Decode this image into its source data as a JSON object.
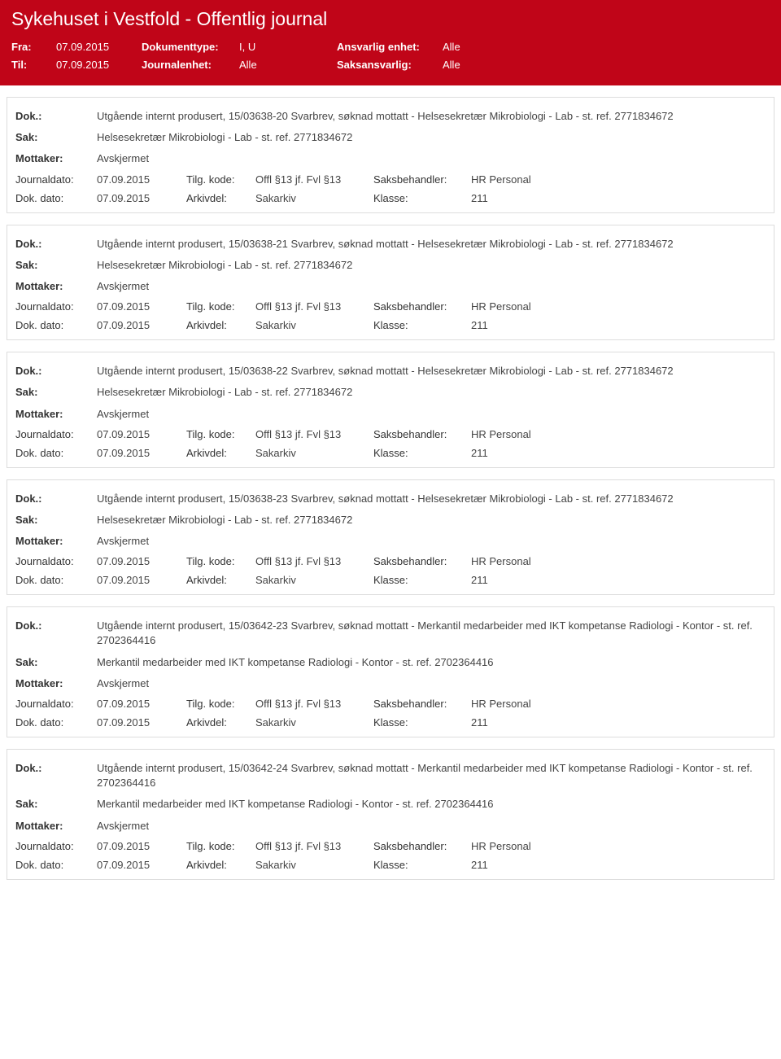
{
  "header": {
    "title": "Sykehuset i Vestfold - Offentlig journal",
    "fra_label": "Fra:",
    "fra_value": "07.09.2015",
    "til_label": "Til:",
    "til_value": "07.09.2015",
    "doktype_label": "Dokumenttype:",
    "doktype_value": "I, U",
    "journalenhet_label": "Journalenhet:",
    "journalenhet_value": "Alle",
    "ansvarlig_label": "Ansvarlig enhet:",
    "ansvarlig_value": "Alle",
    "saksansvarlig_label": "Saksansvarlig:",
    "saksansvarlig_value": "Alle"
  },
  "labels": {
    "dok": "Dok.:",
    "sak": "Sak:",
    "mottaker": "Mottaker:",
    "journaldato": "Journaldato:",
    "tilgkode": "Tilg. kode:",
    "saksbehandler": "Saksbehandler:",
    "dokdato": "Dok. dato:",
    "arkivdel": "Arkivdel:",
    "klasse": "Klasse:"
  },
  "entries": [
    {
      "dok": "Utgående internt produsert, 15/03638-20 Svarbrev, søknad mottatt - Helsesekretær Mikrobiologi - Lab - st. ref. 2771834672",
      "sak": "Helsesekretær Mikrobiologi - Lab - st. ref. 2771834672",
      "mottaker": "Avskjermet",
      "journaldato": "07.09.2015",
      "tilgkode": "Offl §13 jf. Fvl §13",
      "saksbehandler": "HR Personal",
      "dokdato": "07.09.2015",
      "arkivdel": "Sakarkiv",
      "klasse": "211"
    },
    {
      "dok": "Utgående internt produsert, 15/03638-21 Svarbrev, søknad mottatt - Helsesekretær Mikrobiologi - Lab - st. ref. 2771834672",
      "sak": "Helsesekretær Mikrobiologi - Lab - st. ref. 2771834672",
      "mottaker": "Avskjermet",
      "journaldato": "07.09.2015",
      "tilgkode": "Offl §13 jf. Fvl §13",
      "saksbehandler": "HR Personal",
      "dokdato": "07.09.2015",
      "arkivdel": "Sakarkiv",
      "klasse": "211"
    },
    {
      "dok": "Utgående internt produsert, 15/03638-22 Svarbrev, søknad mottatt - Helsesekretær Mikrobiologi - Lab - st. ref. 2771834672",
      "sak": "Helsesekretær Mikrobiologi - Lab - st. ref. 2771834672",
      "mottaker": "Avskjermet",
      "journaldato": "07.09.2015",
      "tilgkode": "Offl §13 jf. Fvl §13",
      "saksbehandler": "HR Personal",
      "dokdato": "07.09.2015",
      "arkivdel": "Sakarkiv",
      "klasse": "211"
    },
    {
      "dok": "Utgående internt produsert, 15/03638-23 Svarbrev, søknad mottatt - Helsesekretær Mikrobiologi - Lab - st. ref. 2771834672",
      "sak": "Helsesekretær Mikrobiologi - Lab - st. ref. 2771834672",
      "mottaker": "Avskjermet",
      "journaldato": "07.09.2015",
      "tilgkode": "Offl §13 jf. Fvl §13",
      "saksbehandler": "HR Personal",
      "dokdato": "07.09.2015",
      "arkivdel": "Sakarkiv",
      "klasse": "211"
    },
    {
      "dok": "Utgående internt produsert, 15/03642-23 Svarbrev, søknad mottatt - Merkantil medarbeider med IKT kompetanse Radiologi - Kontor - st. ref. 2702364416",
      "sak": "Merkantil medarbeider med IKT kompetanse Radiologi - Kontor - st. ref. 2702364416",
      "mottaker": "Avskjermet",
      "journaldato": "07.09.2015",
      "tilgkode": "Offl §13 jf. Fvl §13",
      "saksbehandler": "HR Personal",
      "dokdato": "07.09.2015",
      "arkivdel": "Sakarkiv",
      "klasse": "211"
    },
    {
      "dok": "Utgående internt produsert, 15/03642-24 Svarbrev, søknad mottatt - Merkantil medarbeider med IKT kompetanse Radiologi - Kontor - st. ref. 2702364416",
      "sak": "Merkantil medarbeider med IKT kompetanse Radiologi - Kontor - st. ref. 2702364416",
      "mottaker": "Avskjermet",
      "journaldato": "07.09.2015",
      "tilgkode": "Offl §13 jf. Fvl §13",
      "saksbehandler": "HR Personal",
      "dokdato": "07.09.2015",
      "arkivdel": "Sakarkiv",
      "klasse": "211"
    }
  ]
}
